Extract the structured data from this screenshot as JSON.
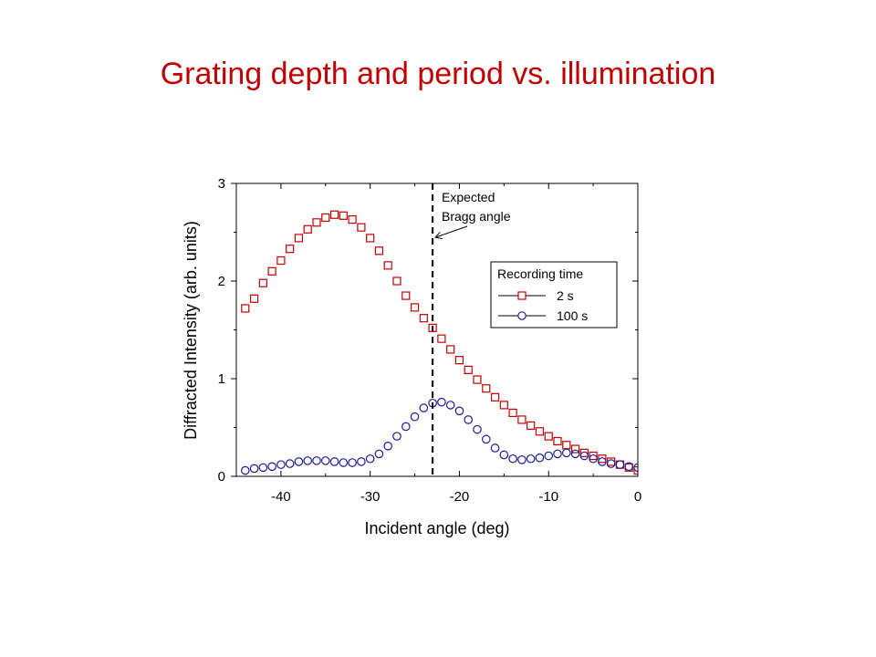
{
  "slide": {
    "title": "Grating depth and period vs. illumination"
  },
  "chart_data": {
    "type": "scatter",
    "title": "",
    "xlabel": "Incident angle (deg)",
    "ylabel": "Diffracted Intensity (arb. units)",
    "xlim": [
      -45,
      0
    ],
    "ylim": [
      0,
      3
    ],
    "x_ticks": [
      -40,
      -30,
      -20,
      -10,
      0
    ],
    "y_ticks": [
      0,
      1,
      2,
      3
    ],
    "grid": false,
    "legend_title": "Recording time",
    "legend_position": "upper-right",
    "reference_line": {
      "x": -23,
      "style": "dashed",
      "color": "#000000"
    },
    "annotation": {
      "lines": [
        "Expected",
        "Bragg angle"
      ],
      "arrow_target": {
        "x": -23,
        "y": 2.45
      }
    },
    "series": [
      {
        "name": "2 s",
        "marker": "square",
        "color": "#c00000",
        "points": [
          [
            -44,
            1.72
          ],
          [
            -43,
            1.82
          ],
          [
            -42,
            1.98
          ],
          [
            -41,
            2.1
          ],
          [
            -40,
            2.21
          ],
          [
            -39,
            2.33
          ],
          [
            -38,
            2.44
          ],
          [
            -37,
            2.53
          ],
          [
            -36,
            2.6
          ],
          [
            -35,
            2.65
          ],
          [
            -34,
            2.68
          ],
          [
            -33,
            2.67
          ],
          [
            -32,
            2.63
          ],
          [
            -31,
            2.55
          ],
          [
            -30,
            2.44
          ],
          [
            -29,
            2.31
          ],
          [
            -28,
            2.16
          ],
          [
            -27,
            2.0
          ],
          [
            -26,
            1.85
          ],
          [
            -25,
            1.73
          ],
          [
            -24,
            1.62
          ],
          [
            -23,
            1.52
          ],
          [
            -22,
            1.41
          ],
          [
            -21,
            1.3
          ],
          [
            -20,
            1.19
          ],
          [
            -19,
            1.09
          ],
          [
            -18,
            0.99
          ],
          [
            -17,
            0.9
          ],
          [
            -16,
            0.81
          ],
          [
            -15,
            0.73
          ],
          [
            -14,
            0.65
          ],
          [
            -13,
            0.58
          ],
          [
            -12,
            0.52
          ],
          [
            -11,
            0.46
          ],
          [
            -10,
            0.41
          ],
          [
            -9,
            0.36
          ],
          [
            -8,
            0.32
          ],
          [
            -7,
            0.28
          ],
          [
            -6,
            0.24
          ],
          [
            -5,
            0.21
          ],
          [
            -4,
            0.18
          ],
          [
            -3,
            0.15
          ],
          [
            -2,
            0.12
          ],
          [
            -1,
            0.09
          ],
          [
            0,
            0.06
          ]
        ]
      },
      {
        "name": "100 s",
        "marker": "circle",
        "color": "#1c1c99",
        "points": [
          [
            -44,
            0.06
          ],
          [
            -43,
            0.08
          ],
          [
            -42,
            0.09
          ],
          [
            -41,
            0.1
          ],
          [
            -40,
            0.12
          ],
          [
            -39,
            0.13
          ],
          [
            -38,
            0.15
          ],
          [
            -37,
            0.16
          ],
          [
            -36,
            0.16
          ],
          [
            -35,
            0.16
          ],
          [
            -34,
            0.15
          ],
          [
            -33,
            0.14
          ],
          [
            -32,
            0.14
          ],
          [
            -31,
            0.15
          ],
          [
            -30,
            0.18
          ],
          [
            -29,
            0.23
          ],
          [
            -28,
            0.31
          ],
          [
            -27,
            0.41
          ],
          [
            -26,
            0.51
          ],
          [
            -25,
            0.61
          ],
          [
            -24,
            0.7
          ],
          [
            -23,
            0.75
          ],
          [
            -22,
            0.76
          ],
          [
            -21,
            0.73
          ],
          [
            -20,
            0.67
          ],
          [
            -19,
            0.58
          ],
          [
            -18,
            0.48
          ],
          [
            -17,
            0.38
          ],
          [
            -16,
            0.29
          ],
          [
            -15,
            0.22
          ],
          [
            -14,
            0.18
          ],
          [
            -13,
            0.17
          ],
          [
            -12,
            0.18
          ],
          [
            -11,
            0.19
          ],
          [
            -10,
            0.21
          ],
          [
            -9,
            0.23
          ],
          [
            -8,
            0.24
          ],
          [
            -7,
            0.23
          ],
          [
            -6,
            0.21
          ],
          [
            -5,
            0.18
          ],
          [
            -4,
            0.15
          ],
          [
            -3,
            0.13
          ],
          [
            -2,
            0.12
          ],
          [
            -1,
            0.1
          ],
          [
            0,
            0.09
          ]
        ]
      }
    ]
  }
}
